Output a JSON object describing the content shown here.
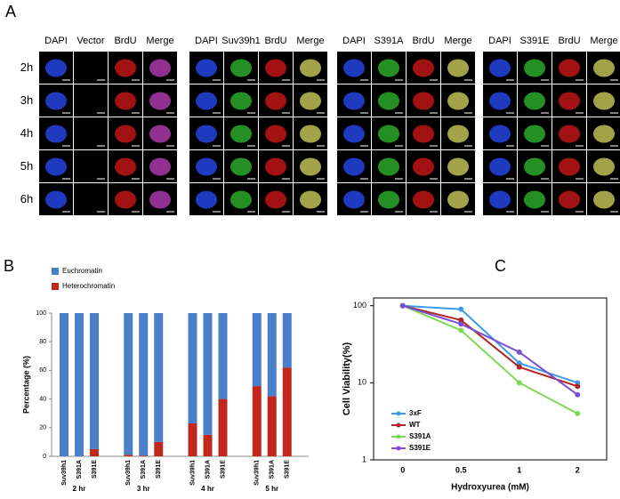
{
  "panel_a": {
    "label": "A",
    "headers": [
      [
        "DAPI",
        "Vector",
        "BrdU",
        "Merge"
      ],
      [
        "DAPI",
        "Suv39h1",
        "BrdU",
        "Merge"
      ],
      [
        "DAPI",
        "S391A",
        "BrdU",
        "Merge"
      ],
      [
        "DAPI",
        "S391E",
        "BrdU",
        "Merge"
      ]
    ],
    "rows": [
      "2h",
      "3h",
      "4h",
      "5h",
      "6h"
    ]
  },
  "panel_labels": {
    "b": "B",
    "c": "C"
  },
  "chart_data": [
    {
      "type": "stacked-bar",
      "ylabel": "Percentage (%)",
      "categories": [
        "Suv39h1",
        "S391A",
        "S391E",
        "Suv39h1",
        "S391A",
        "S391E",
        "Suv39h1",
        "S391A",
        "S391E",
        "Suv39h1",
        "S391A",
        "S391E"
      ],
      "groups": [
        "2 hr",
        "3 hr",
        "4 hr",
        "5 hr"
      ],
      "series": [
        {
          "name": "Heterochromatin",
          "color": "#c0281c",
          "values": [
            0,
            0,
            5,
            1,
            0.5,
            10,
            23,
            15,
            40,
            49,
            42,
            62
          ]
        },
        {
          "name": "Euchromatin",
          "color": "#4a7fc9",
          "values": [
            100,
            100,
            95,
            99,
            99.5,
            90,
            77,
            85,
            60,
            51,
            58,
            38
          ]
        }
      ],
      "ylim": [
        0,
        100
      ],
      "yticks": [
        0,
        20,
        40,
        60,
        80,
        100
      ]
    },
    {
      "type": "line",
      "xlabel": "Hydroxyurea (mM)",
      "ylabel": "Cell Viability(%)",
      "categories": [
        "0",
        "0.5",
        "1",
        "2"
      ],
      "log_scale": true,
      "ylim": [
        1,
        126
      ],
      "yticks": [
        1,
        10,
        100
      ],
      "series": [
        {
          "name": "3xF",
          "color": "#3d9be9",
          "values": [
            100,
            90,
            18,
            10
          ]
        },
        {
          "name": "WT",
          "color": "#b22222",
          "values": [
            100,
            65,
            16,
            9
          ]
        },
        {
          "name": "S391A",
          "color": "#7ed957",
          "values": [
            100,
            48,
            10,
            4
          ]
        },
        {
          "name": "S391E",
          "color": "#7a4fd1",
          "values": [
            100,
            58,
            25,
            7
          ]
        }
      ]
    }
  ]
}
